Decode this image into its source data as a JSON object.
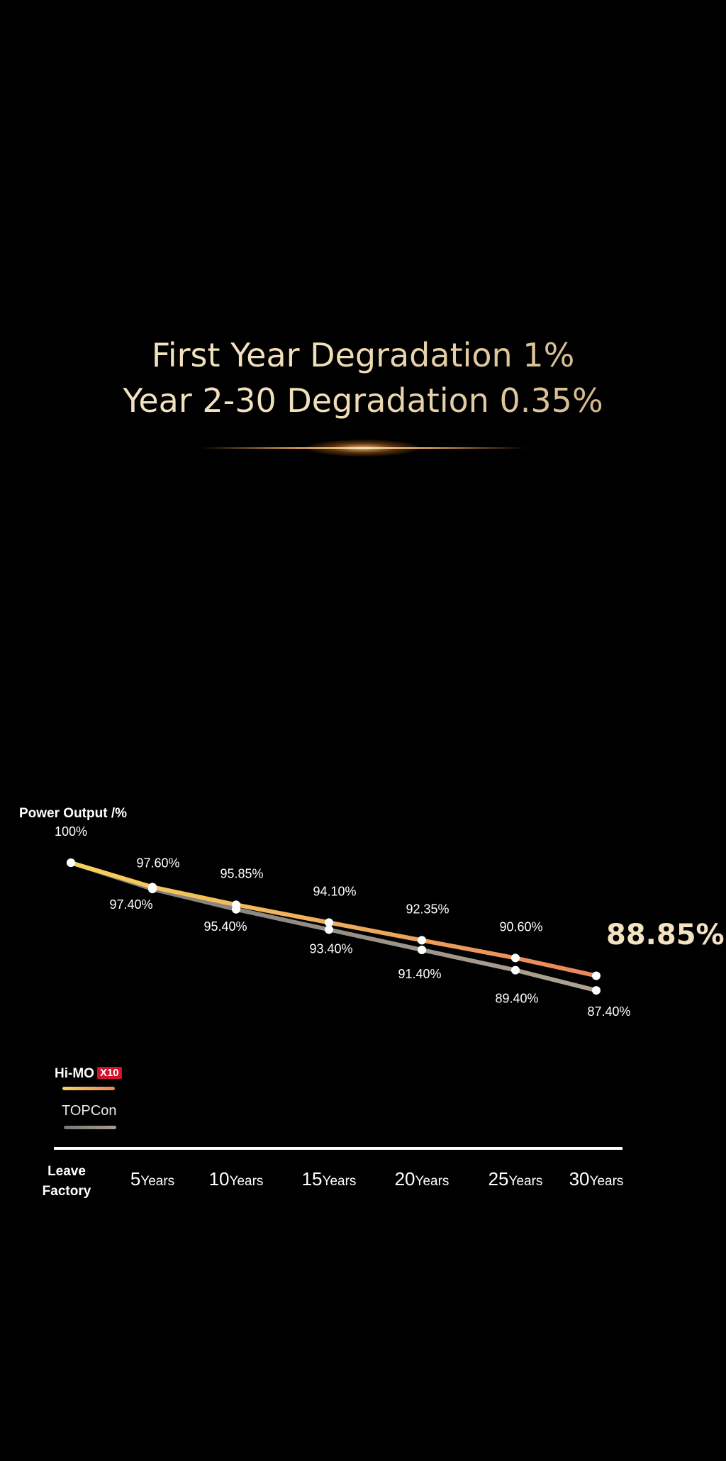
{
  "headline": {
    "line1": "First Year Degradation 1%",
    "line2": "Year 2-30 Degradation 0.35%"
  },
  "legend": {
    "himo_name": "Hi-MO",
    "himo_badge": "X10",
    "topcon_name": "TOPCon"
  },
  "x_first_label": [
    "Leave",
    "Factory"
  ],
  "colors": {
    "himo_start": "#f7d35a",
    "himo_end": "#e9865a",
    "topcon_start": "#7a7a7a",
    "topcon_end": "#b0a493",
    "highlight": "#f3e3c3",
    "badge": "#d3112b"
  },
  "chart_data": {
    "type": "line",
    "ylabel": "Power Output /%",
    "x": [
      "Leave Factory",
      "5Years",
      "10Years",
      "15Years",
      "20Years",
      "25Years",
      "30Years"
    ],
    "x_ticks": [
      {
        "num": "5",
        "unit": "Years"
      },
      {
        "num": "10",
        "unit": "Years"
      },
      {
        "num": "15",
        "unit": "Years"
      },
      {
        "num": "20",
        "unit": "Years"
      },
      {
        "num": "25",
        "unit": "Years"
      },
      {
        "num": "30",
        "unit": "Years"
      }
    ],
    "start_label": "100%",
    "series": [
      {
        "name": "Hi-MO X10",
        "values": [
          100,
          97.6,
          95.85,
          94.1,
          92.35,
          90.6,
          88.85
        ],
        "labels": [
          "100%",
          "97.60%",
          "95.85%",
          "94.10%",
          "92.35%",
          "90.60%",
          "88.85%"
        ]
      },
      {
        "name": "TOPCon",
        "values": [
          100,
          97.4,
          95.4,
          93.4,
          91.4,
          89.4,
          87.4
        ],
        "labels": [
          "100%",
          "97.40%",
          "95.40%",
          "93.40%",
          "91.40%",
          "89.40%",
          "87.40%"
        ]
      }
    ],
    "grid": false,
    "legend_position": "bottom-left"
  }
}
